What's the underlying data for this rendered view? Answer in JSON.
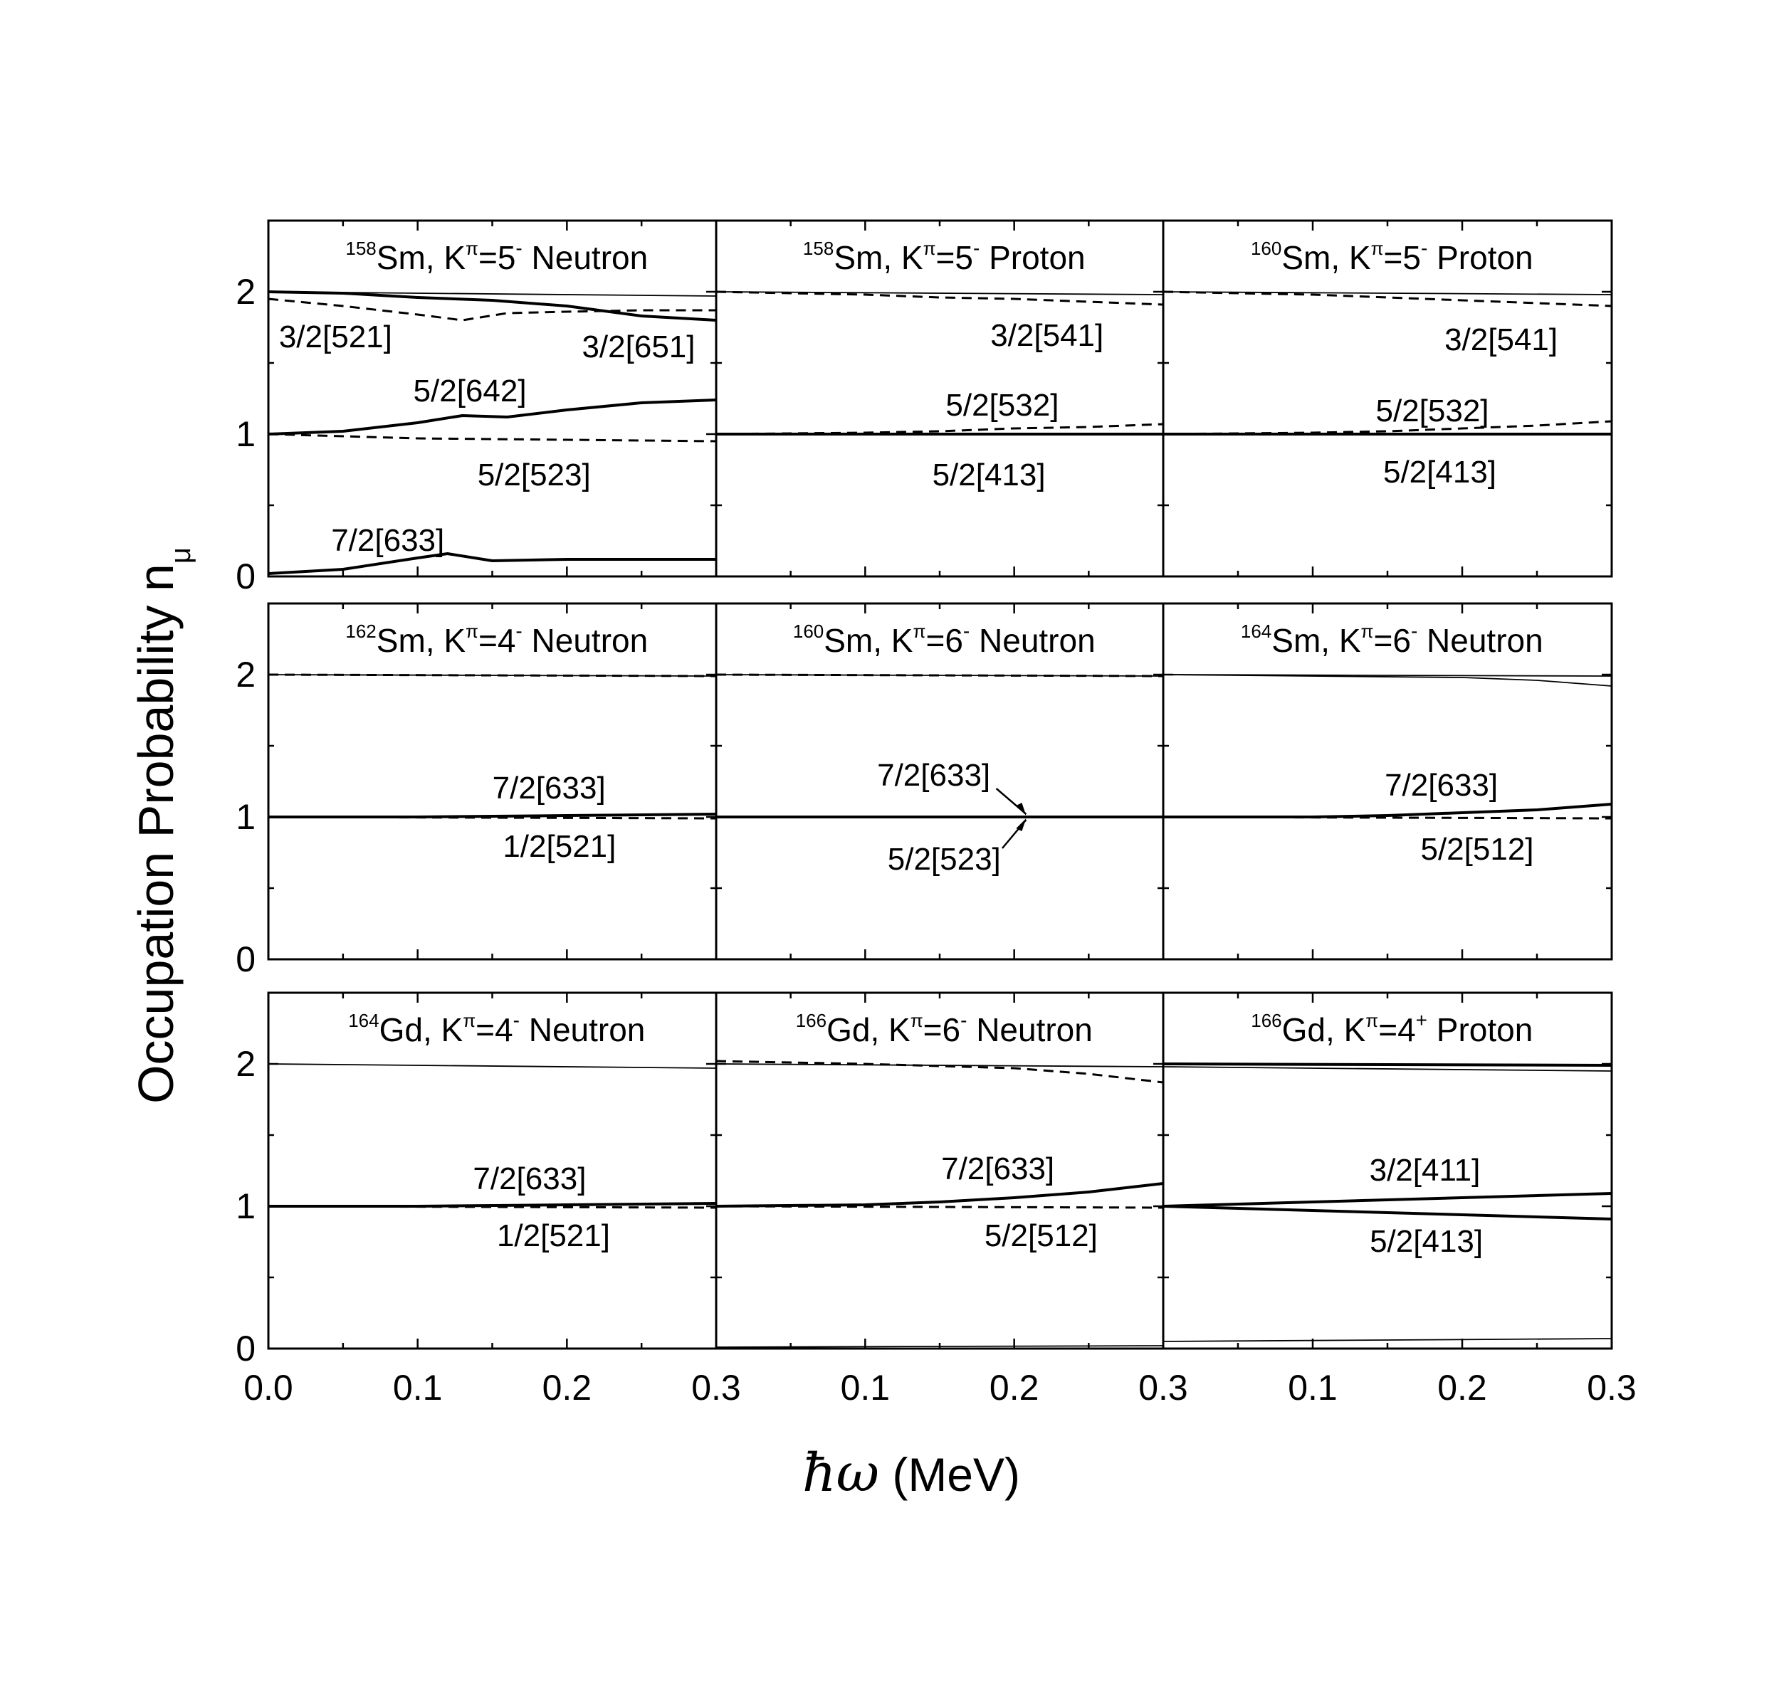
{
  "figure": {
    "ylabel_main": "Occupation Probability n",
    "ylabel_sub": "μ",
    "xlabel_hbar": "ħω",
    "xlabel_unit": " (MeV)",
    "xticks": [
      "0.0",
      "0.1",
      "0.2",
      "0.3"
    ],
    "yticks": [
      "0",
      "1",
      "2"
    ]
  },
  "chart_data": [
    {
      "type": "line",
      "title_mass": "158",
      "title_elem": "Sm, K",
      "title_pi": "π",
      "title_eq": "=5",
      "title_parity": "-",
      "title_kind": "Neutron",
      "xlim": [
        0,
        0.3
      ],
      "ylim": [
        0,
        2.5
      ],
      "series": [
        {
          "style": "solid-thin",
          "x": [
            0,
            0.3
          ],
          "y": [
            2.0,
            1.97
          ]
        },
        {
          "style": "solid",
          "x": [
            0,
            0.05,
            0.1,
            0.15,
            0.2,
            0.25,
            0.3
          ],
          "y": [
            2.0,
            1.99,
            1.96,
            1.94,
            1.9,
            1.83,
            1.8
          ]
        },
        {
          "style": "dashed",
          "x": [
            0,
            0.05,
            0.1,
            0.13,
            0.16,
            0.2,
            0.25,
            0.3
          ],
          "y": [
            1.95,
            1.9,
            1.84,
            1.8,
            1.85,
            1.86,
            1.87,
            1.87
          ]
        },
        {
          "style": "solid",
          "x": [
            0,
            0.05,
            0.1,
            0.13,
            0.16,
            0.2,
            0.25,
            0.3
          ],
          "y": [
            1.0,
            1.02,
            1.08,
            1.13,
            1.12,
            1.17,
            1.22,
            1.24
          ]
        },
        {
          "style": "dashed",
          "x": [
            0,
            0.1,
            0.2,
            0.3
          ],
          "y": [
            1.0,
            0.97,
            0.96,
            0.95
          ]
        },
        {
          "style": "solid",
          "x": [
            0,
            0.05,
            0.1,
            0.12,
            0.15,
            0.2,
            0.25,
            0.3
          ],
          "y": [
            0.02,
            0.05,
            0.13,
            0.16,
            0.11,
            0.12,
            0.12,
            0.12
          ]
        }
      ],
      "annotations": [
        {
          "text": "3/2[521]",
          "x": 0.045,
          "y": 1.68
        },
        {
          "text": "3/2[651]",
          "x": 0.248,
          "y": 1.61
        },
        {
          "text": "5/2[642]",
          "x": 0.135,
          "y": 1.3
        },
        {
          "text": "5/2[523]",
          "x": 0.178,
          "y": 0.71
        },
        {
          "text": "7/2[633]",
          "x": 0.08,
          "y": 0.25
        }
      ]
    },
    {
      "type": "line",
      "title_mass": "158",
      "title_elem": "Sm, K",
      "title_pi": "π",
      "title_eq": "=5",
      "title_parity": "-",
      "title_kind": "Proton",
      "xlim": [
        0,
        0.3
      ],
      "ylim": [
        0,
        2.5
      ],
      "series": [
        {
          "style": "solid-thin",
          "x": [
            0,
            0.3
          ],
          "y": [
            2.0,
            1.98
          ]
        },
        {
          "style": "dashed",
          "x": [
            0,
            0.1,
            0.15,
            0.2,
            0.25,
            0.3
          ],
          "y": [
            2.0,
            1.98,
            1.96,
            1.95,
            1.93,
            1.91
          ]
        },
        {
          "style": "dashed",
          "x": [
            0,
            0.1,
            0.15,
            0.2,
            0.25,
            0.3
          ],
          "y": [
            1.0,
            1.01,
            1.02,
            1.04,
            1.05,
            1.07
          ]
        },
        {
          "style": "solid",
          "x": [
            0,
            0.3
          ],
          "y": [
            1.0,
            1.0
          ]
        }
      ],
      "annotations": [
        {
          "text": "3/2[541]",
          "x": 0.222,
          "y": 1.69
        },
        {
          "text": "5/2[532]",
          "x": 0.192,
          "y": 1.2
        },
        {
          "text": "5/2[413]",
          "x": 0.183,
          "y": 0.71
        }
      ]
    },
    {
      "type": "line",
      "title_mass": "160",
      "title_elem": "Sm, K",
      "title_pi": "π",
      "title_eq": "=5",
      "title_parity": "-",
      "title_kind": "Proton",
      "xlim": [
        0,
        0.3
      ],
      "ylim": [
        0,
        2.5
      ],
      "series": [
        {
          "style": "solid-thin",
          "x": [
            0,
            0.3
          ],
          "y": [
            2.0,
            1.98
          ]
        },
        {
          "style": "dashed",
          "x": [
            0,
            0.1,
            0.15,
            0.2,
            0.25,
            0.3
          ],
          "y": [
            2.0,
            1.98,
            1.96,
            1.94,
            1.92,
            1.9
          ]
        },
        {
          "style": "dashed",
          "x": [
            0,
            0.1,
            0.15,
            0.2,
            0.25,
            0.3
          ],
          "y": [
            1.0,
            1.01,
            1.02,
            1.04,
            1.06,
            1.09
          ]
        },
        {
          "style": "solid",
          "x": [
            0,
            0.3
          ],
          "y": [
            1.0,
            1.0
          ]
        }
      ],
      "annotations": [
        {
          "text": "3/2[541]",
          "x": 0.226,
          "y": 1.66
        },
        {
          "text": "5/2[532]",
          "x": 0.18,
          "y": 1.16
        },
        {
          "text": "5/2[413]",
          "x": 0.185,
          "y": 0.73
        }
      ]
    },
    {
      "type": "line",
      "title_mass": "162",
      "title_elem": "Sm, K",
      "title_pi": "π",
      "title_eq": "=4",
      "title_parity": "-",
      "title_kind": "Neutron",
      "xlim": [
        0,
        0.3
      ],
      "ylim": [
        0,
        2.5
      ],
      "series": [
        {
          "style": "solid-thin",
          "x": [
            0,
            0.3
          ],
          "y": [
            2.0,
            1.99
          ]
        },
        {
          "style": "dashed",
          "x": [
            0,
            0.3
          ],
          "y": [
            2.0,
            1.99
          ]
        },
        {
          "style": "solid",
          "x": [
            0,
            0.1,
            0.2,
            0.3
          ],
          "y": [
            1.0,
            1.0,
            1.01,
            1.02
          ]
        },
        {
          "style": "dashed",
          "x": [
            0,
            0.3
          ],
          "y": [
            1.0,
            0.99
          ]
        }
      ],
      "annotations": [
        {
          "text": "7/2[633]",
          "x": 0.188,
          "y": 1.2
        },
        {
          "text": "1/2[521]",
          "x": 0.195,
          "y": 0.79
        }
      ]
    },
    {
      "type": "line",
      "title_mass": "160",
      "title_elem": "Sm, K",
      "title_pi": "π",
      "title_eq": "=6",
      "title_parity": "-",
      "title_kind": "Neutron",
      "xlim": [
        0,
        0.3
      ],
      "ylim": [
        0,
        2.5
      ],
      "series": [
        {
          "style": "solid-thin",
          "x": [
            0,
            0.3
          ],
          "y": [
            2.0,
            1.99
          ]
        },
        {
          "style": "dashed",
          "x": [
            0,
            0.3
          ],
          "y": [
            2.0,
            1.99
          ]
        },
        {
          "style": "solid",
          "x": [
            0,
            0.3
          ],
          "y": [
            1.0,
            1.0
          ]
        },
        {
          "style": "dashed",
          "x": [
            0,
            0.3
          ],
          "y": [
            1.0,
            1.0
          ]
        }
      ],
      "annotations": [
        {
          "text": "7/2[633]",
          "x": 0.146,
          "y": 1.29
        },
        {
          "text": "5/2[523]",
          "x": 0.153,
          "y": 0.7
        }
      ]
    },
    {
      "type": "line",
      "title_mass": "164",
      "title_elem": "Sm, K",
      "title_pi": "π",
      "title_eq": "=6",
      "title_parity": "-",
      "title_kind": "Neutron",
      "xlim": [
        0,
        0.3
      ],
      "ylim": [
        0,
        2.5
      ],
      "series": [
        {
          "style": "solid-thin",
          "x": [
            0,
            0.2,
            0.25,
            0.3
          ],
          "y": [
            2.0,
            1.98,
            1.96,
            1.92
          ]
        },
        {
          "style": "solid-thin",
          "x": [
            0,
            0.3
          ],
          "y": [
            2.0,
            1.99
          ]
        },
        {
          "style": "solid",
          "x": [
            0,
            0.1,
            0.15,
            0.2,
            0.25,
            0.3
          ],
          "y": [
            1.0,
            1.0,
            1.01,
            1.03,
            1.05,
            1.09
          ]
        },
        {
          "style": "dashed",
          "x": [
            0,
            0.3
          ],
          "y": [
            1.0,
            0.99
          ]
        }
      ],
      "annotations": [
        {
          "text": "7/2[633]",
          "x": 0.186,
          "y": 1.22
        },
        {
          "text": "5/2[512]",
          "x": 0.21,
          "y": 0.77
        }
      ]
    },
    {
      "type": "line",
      "title_mass": "164",
      "title_elem": "Gd, K",
      "title_pi": "π",
      "title_eq": "=4",
      "title_parity": "-",
      "title_kind": "Neutron",
      "xlim": [
        0,
        0.3
      ],
      "ylim": [
        0,
        2.5
      ],
      "series": [
        {
          "style": "solid-thin",
          "x": [
            0,
            0.3
          ],
          "y": [
            2.0,
            1.97
          ]
        },
        {
          "style": "solid",
          "x": [
            0,
            0.1,
            0.2,
            0.3
          ],
          "y": [
            1.0,
            1.0,
            1.01,
            1.02
          ]
        },
        {
          "style": "dashed",
          "x": [
            0,
            0.3
          ],
          "y": [
            1.0,
            0.99
          ]
        }
      ],
      "annotations": [
        {
          "text": "7/2[633]",
          "x": 0.175,
          "y": 1.19
        },
        {
          "text": "1/2[521]",
          "x": 0.191,
          "y": 0.79
        }
      ]
    },
    {
      "type": "line",
      "title_mass": "166",
      "title_elem": "Gd, K",
      "title_pi": "π",
      "title_eq": "=6",
      "title_parity": "-",
      "title_kind": "Neutron",
      "xlim": [
        0,
        0.3
      ],
      "ylim": [
        0,
        2.5
      ],
      "series": [
        {
          "style": "dashed",
          "x": [
            0,
            0.1,
            0.2,
            0.25,
            0.3
          ],
          "y": [
            2.02,
            2.0,
            1.97,
            1.93,
            1.87
          ]
        },
        {
          "style": "solid-thin",
          "x": [
            0,
            0.3
          ],
          "y": [
            2.0,
            1.98
          ]
        },
        {
          "style": "solid",
          "x": [
            0,
            0.1,
            0.15,
            0.2,
            0.25,
            0.3
          ],
          "y": [
            1.0,
            1.01,
            1.03,
            1.06,
            1.1,
            1.16
          ]
        },
        {
          "style": "dashed",
          "x": [
            0,
            0.3
          ],
          "y": [
            1.0,
            0.99
          ]
        },
        {
          "style": "solid-thin",
          "x": [
            0,
            0.3
          ],
          "y": [
            0.01,
            0.02
          ]
        }
      ],
      "annotations": [
        {
          "text": "7/2[633]",
          "x": 0.189,
          "y": 1.26
        },
        {
          "text": "5/2[512]",
          "x": 0.218,
          "y": 0.79
        }
      ]
    },
    {
      "type": "line",
      "title_mass": "166",
      "title_elem": "Gd, K",
      "title_pi": "π",
      "title_eq": "=4",
      "title_parity": "+",
      "title_kind": "Proton",
      "xlim": [
        0,
        0.3
      ],
      "ylim": [
        0,
        2.5
      ],
      "series": [
        {
          "style": "solid",
          "x": [
            0,
            0.3
          ],
          "y": [
            2.0,
            1.99
          ]
        },
        {
          "style": "solid-thin",
          "x": [
            0,
            0.3
          ],
          "y": [
            1.98,
            1.95
          ]
        },
        {
          "style": "solid",
          "x": [
            0,
            0.1,
            0.2,
            0.3
          ],
          "y": [
            1.0,
            1.03,
            1.06,
            1.09
          ]
        },
        {
          "style": "solid",
          "x": [
            0,
            0.1,
            0.2,
            0.3
          ],
          "y": [
            1.0,
            0.97,
            0.94,
            0.91
          ]
        },
        {
          "style": "solid-thin",
          "x": [
            0,
            0.3
          ],
          "y": [
            0.05,
            0.07
          ]
        }
      ],
      "annotations": [
        {
          "text": "3/2[411]",
          "x": 0.175,
          "y": 1.25
        },
        {
          "text": "5/2[413]",
          "x": 0.176,
          "y": 0.75
        }
      ]
    }
  ]
}
